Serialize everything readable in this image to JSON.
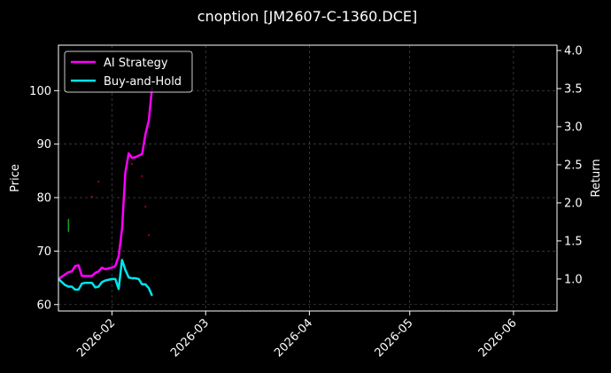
{
  "chart_data": {
    "type": "line",
    "title": "cnoption [JM2607-C-1360.DCE]",
    "ylabel": "Price",
    "y2label": "Return",
    "xlim": [
      "2026-01-16",
      "2026-06-14"
    ],
    "ylim": [
      58.8,
      108.5
    ],
    "y2lim": [
      0.58,
      4.07
    ],
    "x_ticks": [
      "2026-02-01",
      "2026-03-01",
      "2026-04-01",
      "2026-05-01",
      "2026-06-01"
    ],
    "x_tick_labels": [
      "2026-02",
      "2026-03",
      "2026-04",
      "2026-05",
      "2026-06"
    ],
    "y_ticks": [
      60,
      70,
      80,
      90,
      100
    ],
    "y2_ticks": [
      1.0,
      1.5,
      2.0,
      2.5,
      3.0,
      3.5,
      4.0
    ],
    "y2_tick_labels": [
      "1.0",
      "1.5",
      "2.0",
      "2.5",
      "3.0",
      "3.5",
      "4.0"
    ],
    "grid": true,
    "legend_position": "top-left",
    "series": [
      {
        "name": "AI Strategy",
        "axis": "right",
        "color": "#ff00ff",
        "x": [
          "2026-01-16",
          "2026-01-17",
          "2026-01-18",
          "2026-01-19",
          "2026-01-20",
          "2026-01-21",
          "2026-01-22",
          "2026-01-23",
          "2026-01-24",
          "2026-01-25",
          "2026-01-26",
          "2026-01-27",
          "2026-01-28",
          "2026-01-29",
          "2026-01-30",
          "2026-01-31",
          "2026-02-01",
          "2026-02-02",
          "2026-02-03",
          "2026-02-04",
          "2026-02-05",
          "2026-02-06",
          "2026-02-07",
          "2026-02-08",
          "2026-02-09",
          "2026-02-10",
          "2026-02-11",
          "2026-02-12",
          "2026-02-13"
        ],
        "values": [
          1.0,
          1.03,
          1.06,
          1.09,
          1.1,
          1.17,
          1.18,
          1.04,
          1.04,
          1.04,
          1.04,
          1.08,
          1.1,
          1.15,
          1.13,
          1.14,
          1.15,
          1.17,
          1.3,
          1.65,
          2.4,
          2.65,
          2.59,
          2.6,
          2.62,
          2.64,
          2.9,
          3.08,
          3.52
        ]
      },
      {
        "name": "Buy-and-Hold",
        "axis": "right",
        "color": "#00e5ee",
        "x": [
          "2026-01-16",
          "2026-01-17",
          "2026-01-18",
          "2026-01-19",
          "2026-01-20",
          "2026-01-21",
          "2026-01-22",
          "2026-01-23",
          "2026-01-24",
          "2026-01-25",
          "2026-01-26",
          "2026-01-27",
          "2026-01-28",
          "2026-01-29",
          "2026-01-30",
          "2026-01-31",
          "2026-02-01",
          "2026-02-02",
          "2026-02-03",
          "2026-02-04",
          "2026-02-05",
          "2026-02-06",
          "2026-02-07",
          "2026-02-08",
          "2026-02-09",
          "2026-02-10",
          "2026-02-11",
          "2026-02-12",
          "2026-02-13"
        ],
        "values": [
          1.0,
          0.96,
          0.92,
          0.9,
          0.9,
          0.86,
          0.86,
          0.94,
          0.95,
          0.95,
          0.95,
          0.89,
          0.9,
          0.96,
          0.98,
          0.99,
          1.0,
          1.0,
          0.87,
          1.25,
          1.12,
          1.02,
          1.01,
          1.01,
          1.0,
          0.93,
          0.93,
          0.88,
          0.78
        ]
      }
    ],
    "markers": [
      {
        "x": "2026-01-19",
        "low": 73.6,
        "high": 76.0,
        "axis": "left",
        "color": "#1fa01f",
        "kind": "bar"
      },
      {
        "x": "2026-01-26",
        "y": 80.2,
        "axis": "left",
        "color": "#c0002a",
        "kind": "dot"
      },
      {
        "x": "2026-01-28",
        "y": 83.0,
        "axis": "left",
        "color": "#c0002a",
        "kind": "dot"
      },
      {
        "x": "2026-02-07",
        "y": 86.3,
        "axis": "left",
        "color": "#c0002a",
        "kind": "dot"
      },
      {
        "x": "2026-02-10",
        "y": 84.0,
        "axis": "left",
        "color": "#c0002a",
        "kind": "dot"
      },
      {
        "x": "2026-02-11",
        "y": 78.3,
        "axis": "left",
        "color": "#c0002a",
        "kind": "dot"
      },
      {
        "x": "2026-02-12",
        "y": 73.0,
        "axis": "left",
        "color": "#c0002a",
        "kind": "dot"
      }
    ]
  }
}
